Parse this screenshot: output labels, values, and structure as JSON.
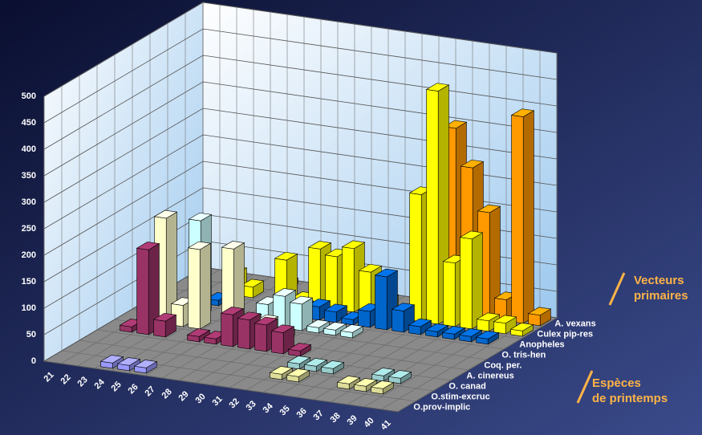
{
  "chart_data": {
    "type": "bar3d",
    "categories": [
      "21",
      "22",
      "23",
      "24",
      "25",
      "26",
      "27",
      "28",
      "29",
      "30",
      "31",
      "32",
      "33",
      "34",
      "35",
      "36",
      "37",
      "38",
      "39",
      "40",
      "41"
    ],
    "series": [
      {
        "name": "O.prov-implic",
        "color": "#9999ff",
        "values": [
          null,
          null,
          null,
          10,
          10,
          10,
          null,
          null,
          null,
          null,
          null,
          null,
          null,
          null,
          null,
          null,
          null,
          null,
          null,
          null,
          null
        ]
      },
      {
        "name": "O.stim-excruc",
        "color": "#dddd99",
        "values": [
          null,
          null,
          null,
          null,
          null,
          null,
          null,
          null,
          null,
          null,
          null,
          null,
          10,
          10,
          null,
          null,
          10,
          10,
          10,
          null,
          null
        ]
      },
      {
        "name": "O. canad",
        "color": "#99cccc",
        "values": [
          null,
          null,
          null,
          null,
          null,
          null,
          null,
          null,
          null,
          null,
          null,
          null,
          10,
          10,
          10,
          null,
          null,
          10,
          10,
          null,
          null
        ]
      },
      {
        "name": "A. cinereus",
        "color": "#993366",
        "values": [
          null,
          10,
          160,
          30,
          null,
          10,
          10,
          60,
          55,
          50,
          40,
          10,
          null,
          null,
          null,
          null,
          null,
          null,
          null,
          null,
          null
        ]
      },
      {
        "name": "Coq. per.",
        "color": "#ffffcc",
        "values": [
          null,
          null,
          200,
          40,
          150,
          null,
          160,
          30,
          30,
          10,
          null,
          null,
          null,
          null,
          null,
          null,
          null,
          null,
          null,
          null,
          null
        ]
      },
      {
        "name": "O. tris-hen",
        "color": "#ccffff",
        "values": [
          null,
          null,
          null,
          180,
          null,
          null,
          null,
          40,
          60,
          50,
          10,
          10,
          10,
          null,
          null,
          null,
          null,
          null,
          null,
          null,
          null
        ]
      },
      {
        "name": "Anopheles",
        "color": "#0066cc",
        "values": [
          null,
          null,
          null,
          10,
          null,
          null,
          10,
          15,
          20,
          25,
          20,
          10,
          30,
          100,
          40,
          15,
          10,
          10,
          10,
          10,
          null
        ]
      },
      {
        "name": "Culex pip-res",
        "color": "#ffff00",
        "values": [
          null,
          null,
          null,
          40,
          20,
          null,
          80,
          10,
          110,
          100,
          120,
          80,
          30,
          null,
          240,
          440,
          120,
          170,
          20,
          20,
          10
        ]
      },
      {
        "name": "A. vexans",
        "color": "#ff9900",
        "values": [
          null,
          null,
          null,
          null,
          null,
          10,
          null,
          null,
          null,
          null,
          null,
          null,
          null,
          null,
          150,
          350,
          280,
          200,
          40,
          390,
          20
        ]
      }
    ],
    "ylim": [
      0,
      500
    ],
    "yticks": [
      0,
      50,
      100,
      150,
      200,
      250,
      300,
      350,
      400,
      450,
      500
    ],
    "grid": true,
    "annotations": [
      {
        "lines": [
          "Vecteurs",
          "primaires"
        ]
      },
      {
        "lines": [
          "Espèces",
          "de printemps"
        ]
      }
    ]
  }
}
